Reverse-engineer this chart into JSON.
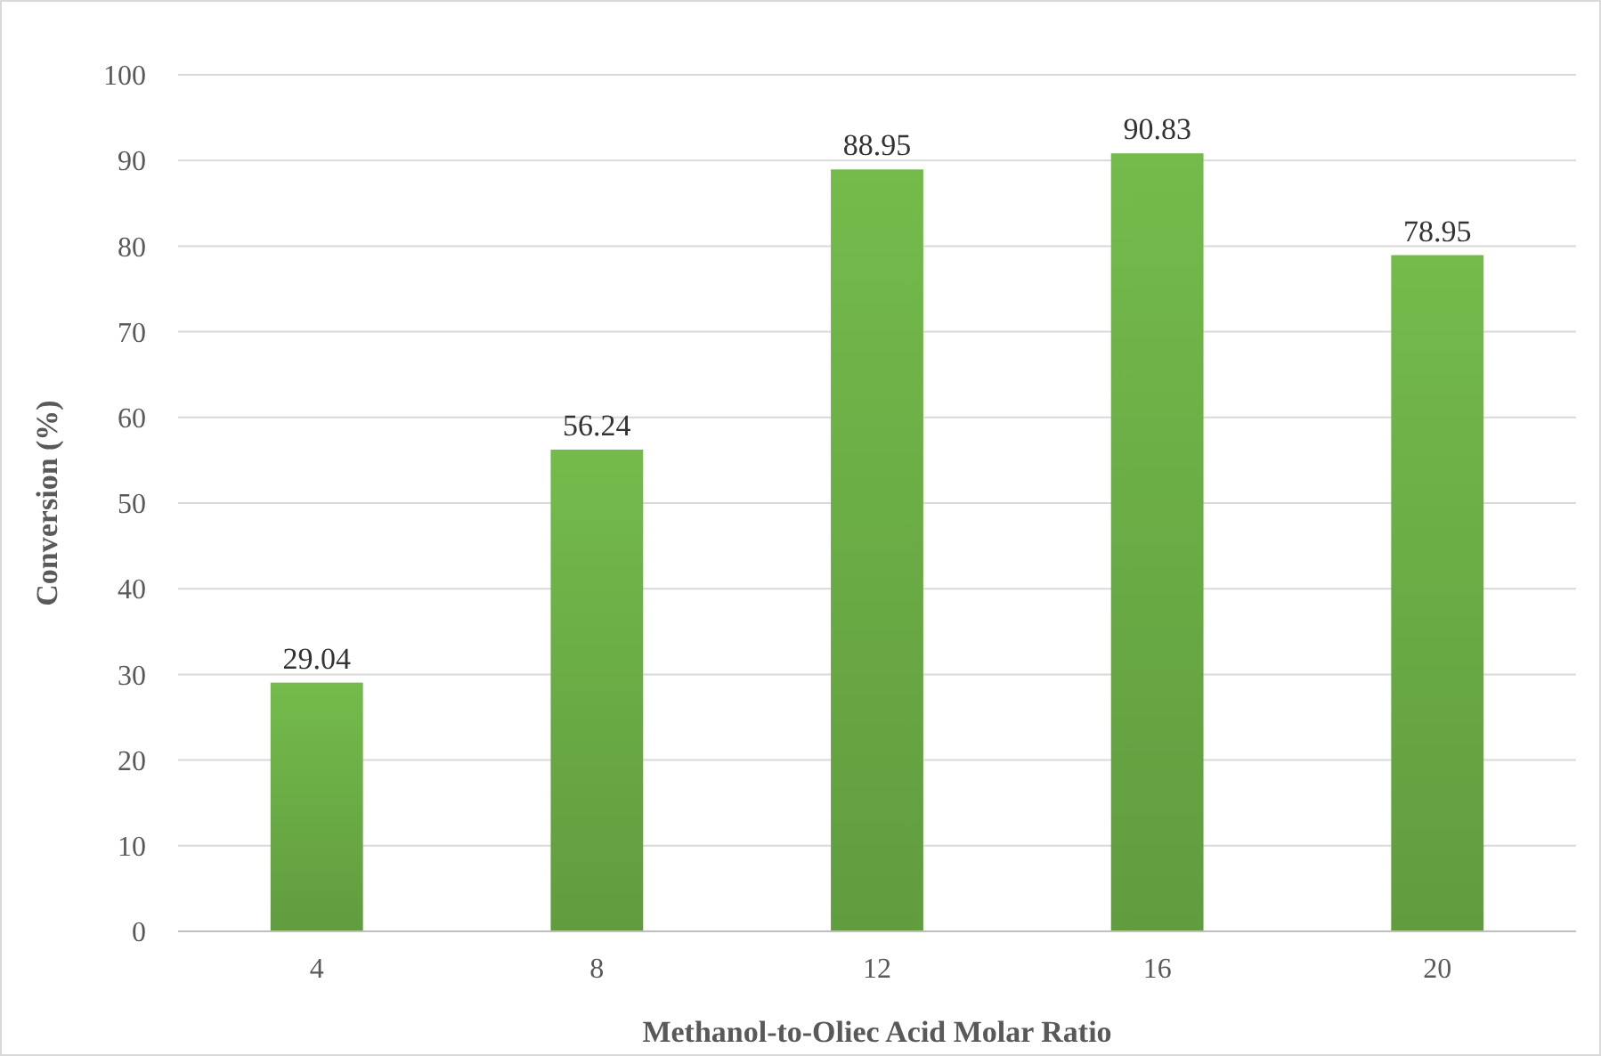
{
  "chart_data": {
    "type": "bar",
    "xlabel": "Methanol-to-Oliec Acid Molar Ratio",
    "ylabel": "Conversion (%)",
    "categories": [
      "4",
      "8",
      "12",
      "16",
      "20"
    ],
    "values": [
      29.04,
      56.24,
      88.95,
      90.83,
      78.95
    ],
    "color": "#6aab45",
    "ylim": [
      0,
      100
    ],
    "yticks": [
      0,
      10,
      20,
      30,
      40,
      50,
      60,
      70,
      80,
      90,
      100
    ],
    "grid": "y",
    "data_labels": true
  }
}
